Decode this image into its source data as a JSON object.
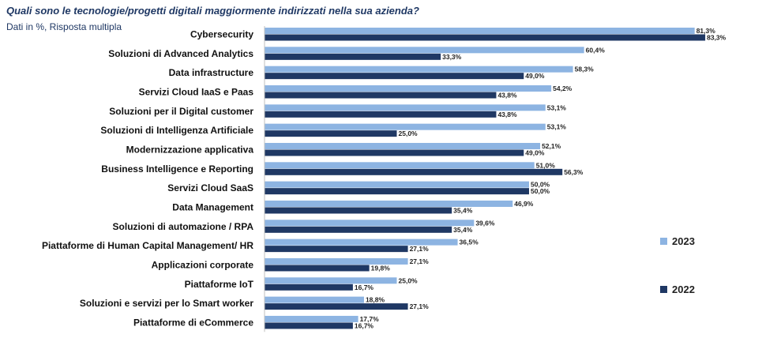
{
  "header": {
    "title": "Quali sono le tecnologie/progetti digitali maggiormente indirizzati nella sua azienda?",
    "subtitle": "Dati in %, Risposta multipla"
  },
  "chart_data": {
    "type": "bar",
    "orientation": "horizontal",
    "categories": [
      "Cybersecurity",
      "Soluzioni di Advanced Analytics",
      "Data infrastructure",
      "Servizi Cloud IaaS e Paas",
      "Soluzioni per il Digital customer",
      "Soluzioni di Intelligenza Artificiale",
      "Modernizzazione applicativa",
      "Business Intelligence e Reporting",
      "Servizi Cloud SaaS",
      "Data Management",
      "Soluzioni di automazione / RPA",
      "Piattaforme di Human Capital Management/ HR",
      "Applicazioni corporate",
      "Piattaforme IoT",
      "Soluzioni e servizi per lo Smart worker",
      "Piattaforme di eCommerce"
    ],
    "series": [
      {
        "name": "2023",
        "color": "#8db4e2",
        "values": [
          81.3,
          60.4,
          58.3,
          54.2,
          53.1,
          53.1,
          52.1,
          51.0,
          50.0,
          46.9,
          39.6,
          36.5,
          27.1,
          25.0,
          18.8,
          17.7
        ],
        "labels": [
          "81,3%",
          "60,4%",
          "58,3%",
          "54,2%",
          "53,1%",
          "53,1%",
          "52,1%",
          "51,0%",
          "50,0%",
          "46,9%",
          "39,6%",
          "36,5%",
          "27,1%",
          "25,0%",
          "18,8%",
          "17,7%"
        ]
      },
      {
        "name": "2022",
        "color": "#1f3864",
        "values": [
          83.3,
          33.3,
          49.0,
          43.8,
          43.8,
          25.0,
          49.0,
          56.3,
          50.0,
          35.4,
          35.4,
          27.1,
          19.8,
          16.7,
          27.1,
          16.7
        ],
        "labels": [
          "83,3%",
          "33,3%",
          "49,0%",
          "43,8%",
          "43,8%",
          "25,0%",
          "49,0%",
          "56,3%",
          "50,0%",
          "35,4%",
          "35,4%",
          "27,1%",
          "19,8%",
          "16,7%",
          "27,1%",
          "16,7%"
        ]
      }
    ],
    "xlim": [
      0,
      100
    ],
    "grid": false,
    "legend_position": "right"
  }
}
